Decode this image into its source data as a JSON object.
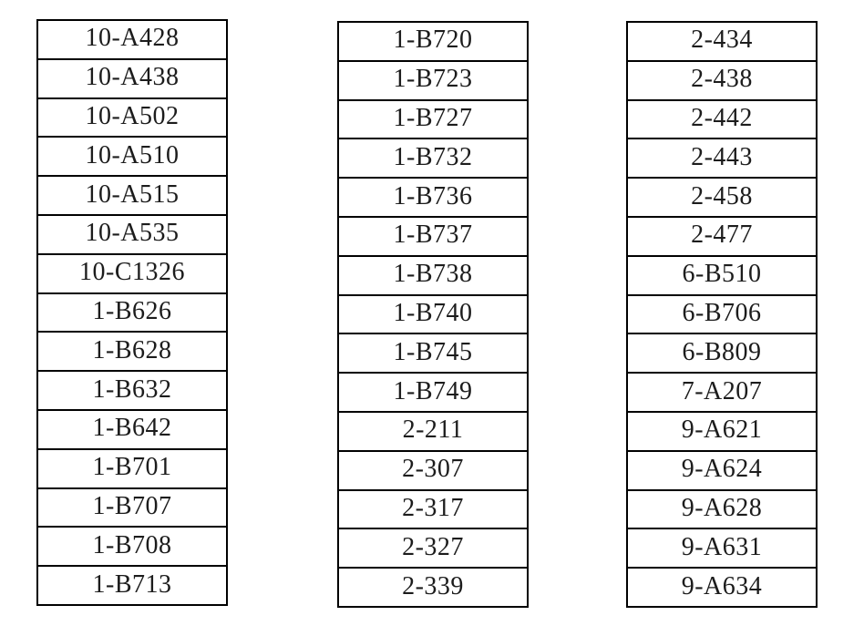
{
  "page": {
    "background": "#ffffff",
    "text_color": "#1c1c1c",
    "border_color": "#000000"
  },
  "tables": [
    {
      "name": "code-table-1",
      "rows": [
        "10-A428",
        "10-A438",
        "10-A502",
        "10-A510",
        "10-A515",
        "10-A535",
        "10-C1326",
        "1-B626",
        "1-B628",
        "1-B632",
        "1-B642",
        "1-B701",
        "1-B707",
        "1-B708",
        "1-B713"
      ]
    },
    {
      "name": "code-table-2",
      "rows": [
        "1-B720",
        "1-B723",
        "1-B727",
        "1-B732",
        "1-B736",
        "1-B737",
        "1-B738",
        "1-B740",
        "1-B745",
        "1-B749",
        "2-211",
        "2-307",
        "2-317",
        "2-327",
        "2-339"
      ]
    },
    {
      "name": "code-table-3",
      "rows": [
        "2-434",
        "2-438",
        "2-442",
        "2-443",
        "2-458",
        "2-477",
        "6-B510",
        "6-B706",
        "6-B809",
        "7-A207",
        "9-A621",
        "9-A624",
        "9-A628",
        "9-A631",
        "9-A634"
      ]
    }
  ]
}
